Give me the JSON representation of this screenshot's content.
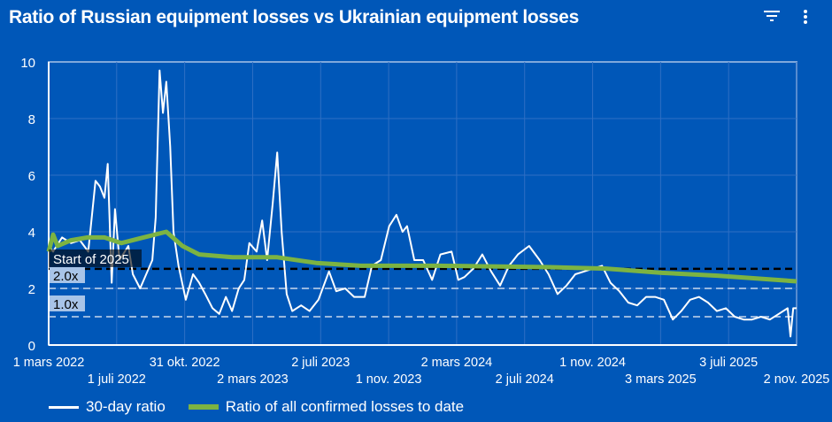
{
  "title": "Ratio of Russian equipment losses vs Ukrainian equipment losses",
  "icons": {
    "filter": "filter-icon",
    "more": "more-vert-icon"
  },
  "colors": {
    "background": "#0057B8",
    "series1": "#FFFFFF",
    "series2": "#7CB342",
    "reference": "#000000"
  },
  "chart_data": {
    "type": "line",
    "title": "Ratio of Russian equipment losses vs Ukrainian equipment losses",
    "xlabel": "",
    "ylabel": "",
    "x_unit": "days since 1 mars 2022",
    "xlim": [
      0,
      1342
    ],
    "ylim": [
      0,
      10
    ],
    "yticks": [
      0,
      2,
      4,
      6,
      8,
      10
    ],
    "xticks": [
      {
        "day": 0,
        "label": "1 mars 2022",
        "row": 0
      },
      {
        "day": 122,
        "label": "1 juli 2022",
        "row": 1
      },
      {
        "day": 244,
        "label": "31 okt. 2022",
        "row": 0
      },
      {
        "day": 366,
        "label": "2 mars 2023",
        "row": 1
      },
      {
        "day": 488,
        "label": "2 juli 2023",
        "row": 0
      },
      {
        "day": 610,
        "label": "1 nov. 2023",
        "row": 1
      },
      {
        "day": 732,
        "label": "2 mars 2024",
        "row": 0
      },
      {
        "day": 854,
        "label": "2 juli 2024",
        "row": 1
      },
      {
        "day": 976,
        "label": "1 nov. 2024",
        "row": 0
      },
      {
        "day": 1098,
        "label": "3 mars 2025",
        "row": 1
      },
      {
        "day": 1220,
        "label": "3 juli 2025",
        "row": 0
      },
      {
        "day": 1342,
        "label": "2 nov. 2025",
        "row": 1
      }
    ],
    "grid": true,
    "legend_position": "bottom-left",
    "series": [
      {
        "name": "30-day ratio",
        "color": "#FFFFFF",
        "x": [
          0,
          8,
          24,
          40,
          56,
          71,
          84,
          92,
          100,
          106,
          113,
          119,
          127,
          143,
          151,
          164,
          175,
          186,
          192,
          199,
          205,
          211,
          218,
          224,
          233,
          246,
          259,
          270,
          281,
          294,
          306,
          318,
          329,
          341,
          351,
          360,
          373,
          383,
          392,
          402,
          410,
          418,
          427,
          437,
          453,
          468,
          484,
          503,
          516,
          532,
          548,
          567,
          580,
          596,
          611,
          624,
          635,
          643,
          656,
          672,
          688,
          703,
          723,
          735,
          746,
          762,
          778,
          794,
          810,
          826,
          842,
          862,
          881,
          897,
          913,
          929,
          945,
          961,
          977,
          993,
          1008,
          1024,
          1040,
          1056,
          1072,
          1088,
          1104,
          1120,
          1135,
          1151,
          1167,
          1183,
          1199,
          1215,
          1231,
          1247,
          1262,
          1278,
          1294,
          1310,
          1326,
          1331,
          1336,
          1342
        ],
        "y": [
          3.5,
          3.3,
          3.8,
          3.6,
          3.7,
          3.3,
          5.8,
          5.6,
          5.2,
          6.4,
          2.2,
          4.8,
          3.0,
          3.5,
          2.5,
          2.0,
          2.5,
          3.0,
          4.5,
          9.7,
          8.2,
          9.3,
          7.0,
          4.0,
          2.8,
          1.6,
          2.5,
          2.2,
          1.8,
          1.3,
          1.1,
          1.7,
          1.2,
          2.0,
          2.3,
          3.6,
          3.3,
          4.4,
          3.0,
          5.0,
          6.8,
          4.0,
          1.8,
          1.2,
          1.4,
          1.2,
          1.6,
          2.6,
          1.9,
          2.0,
          1.7,
          1.7,
          2.8,
          3.0,
          4.2,
          4.6,
          4.0,
          4.2,
          3.0,
          3.0,
          2.3,
          3.2,
          3.3,
          2.3,
          2.4,
          2.7,
          3.2,
          2.6,
          2.1,
          2.8,
          3.2,
          3.5,
          3.0,
          2.5,
          1.8,
          2.1,
          2.5,
          2.6,
          2.7,
          2.8,
          2.2,
          1.9,
          1.5,
          1.4,
          1.7,
          1.7,
          1.6,
          0.9,
          1.2,
          1.6,
          1.7,
          1.5,
          1.2,
          1.3,
          1.0,
          0.9,
          0.9,
          1.0,
          0.9,
          1.1,
          1.3,
          0.3,
          1.3,
          1.3
        ]
      },
      {
        "name": "Ratio of all confirmed losses to date",
        "color": "#7CB342",
        "x": [
          0,
          8,
          16,
          40,
          70,
          100,
          130,
          170,
          211,
          240,
          270,
          330,
          410,
          480,
          560,
          700,
          900,
          1000,
          1100,
          1200,
          1342
        ],
        "y": [
          3.3,
          3.9,
          3.5,
          3.7,
          3.8,
          3.8,
          3.6,
          3.8,
          4.0,
          3.5,
          3.2,
          3.1,
          3.1,
          2.9,
          2.8,
          2.8,
          2.75,
          2.7,
          2.55,
          2.45,
          2.25
        ]
      }
    ],
    "annotations": [
      {
        "type": "hline",
        "y": 2.69,
        "label": "Start of 2025",
        "style": "dashed-black"
      },
      {
        "type": "hline",
        "y": 2.0,
        "label": "2.0x",
        "style": "dashed-light"
      },
      {
        "type": "hline",
        "y": 1.0,
        "label": "1.0x",
        "style": "dashed-light"
      }
    ]
  }
}
